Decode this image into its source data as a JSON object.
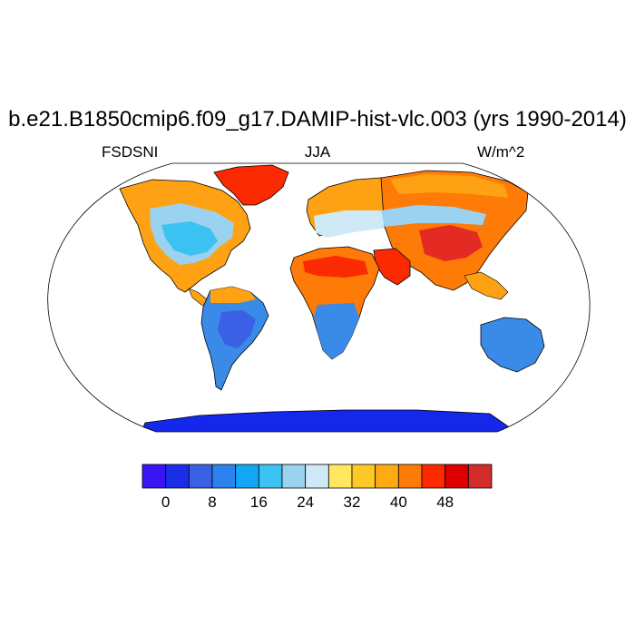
{
  "title": "b.e21.B1850cmip6.f09_g17.DAMIP-hist-vlc.003 (yrs 1990-2014)",
  "left_label": "FSDSNI",
  "center_label": "JJA",
  "right_label": "W/m^2",
  "colorbar": {
    "colors": [
      "#3a14f2",
      "#1a2ee8",
      "#3a60e6",
      "#2c83f0",
      "#12a6f4",
      "#3cc2f2",
      "#9bd2ef",
      "#cfe9f6",
      "#ffe860",
      "#fec826",
      "#feaa12",
      "#fd7b06",
      "#fd2a00",
      "#de0000",
      "#d42b2b"
    ],
    "tick_labels": [
      "0",
      "8",
      "16",
      "24",
      "32",
      "40",
      "48"
    ]
  },
  "map_colors": {
    "ocean": "#ffffff",
    "coast": "#000000",
    "land_colors": [
      "#fea214",
      "#fd7b06",
      "#fc2a00",
      "#1427ea",
      "#3a8ae8",
      "#9bd2ef",
      "#ffe860",
      "#e32a23"
    ]
  }
}
